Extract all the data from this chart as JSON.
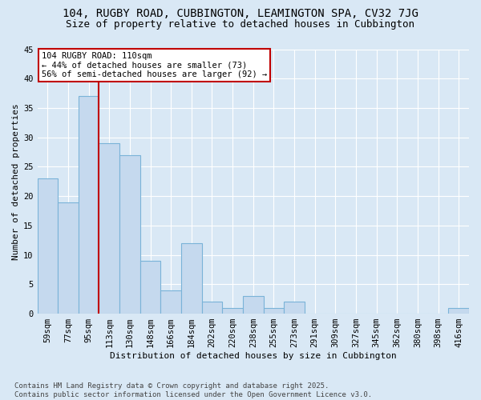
{
  "title1": "104, RUGBY ROAD, CUBBINGTON, LEAMINGTON SPA, CV32 7JG",
  "title2": "Size of property relative to detached houses in Cubbington",
  "xlabel": "Distribution of detached houses by size in Cubbington",
  "ylabel": "Number of detached properties",
  "categories": [
    "59sqm",
    "77sqm",
    "95sqm",
    "113sqm",
    "130sqm",
    "148sqm",
    "166sqm",
    "184sqm",
    "202sqm",
    "220sqm",
    "238sqm",
    "255sqm",
    "273sqm",
    "291sqm",
    "309sqm",
    "327sqm",
    "345sqm",
    "362sqm",
    "380sqm",
    "398sqm",
    "416sqm"
  ],
  "values": [
    23,
    19,
    37,
    29,
    27,
    9,
    4,
    12,
    2,
    1,
    3,
    1,
    2,
    0,
    0,
    0,
    0,
    0,
    0,
    0,
    1
  ],
  "bar_color": "#c5d9ee",
  "bar_edge_color": "#7ab3d8",
  "vline_position": 2.5,
  "vline_color": "#c00000",
  "annotation_text": "104 RUGBY ROAD: 110sqm\n← 44% of detached houses are smaller (73)\n56% of semi-detached houses are larger (92) →",
  "annotation_box_facecolor": "#ffffff",
  "annotation_box_edgecolor": "#c00000",
  "footnote": "Contains HM Land Registry data © Crown copyright and database right 2025.\nContains public sector information licensed under the Open Government Licence v3.0.",
  "ylim_max": 45,
  "yticks": [
    0,
    5,
    10,
    15,
    20,
    25,
    30,
    35,
    40,
    45
  ],
  "bg_color": "#d9e8f5",
  "grid_color": "#ffffff",
  "title1_fontsize": 10,
  "title2_fontsize": 9,
  "axis_label_fontsize": 8,
  "tick_fontsize": 7.5,
  "annotation_fontsize": 7.5,
  "footnote_fontsize": 6.5
}
